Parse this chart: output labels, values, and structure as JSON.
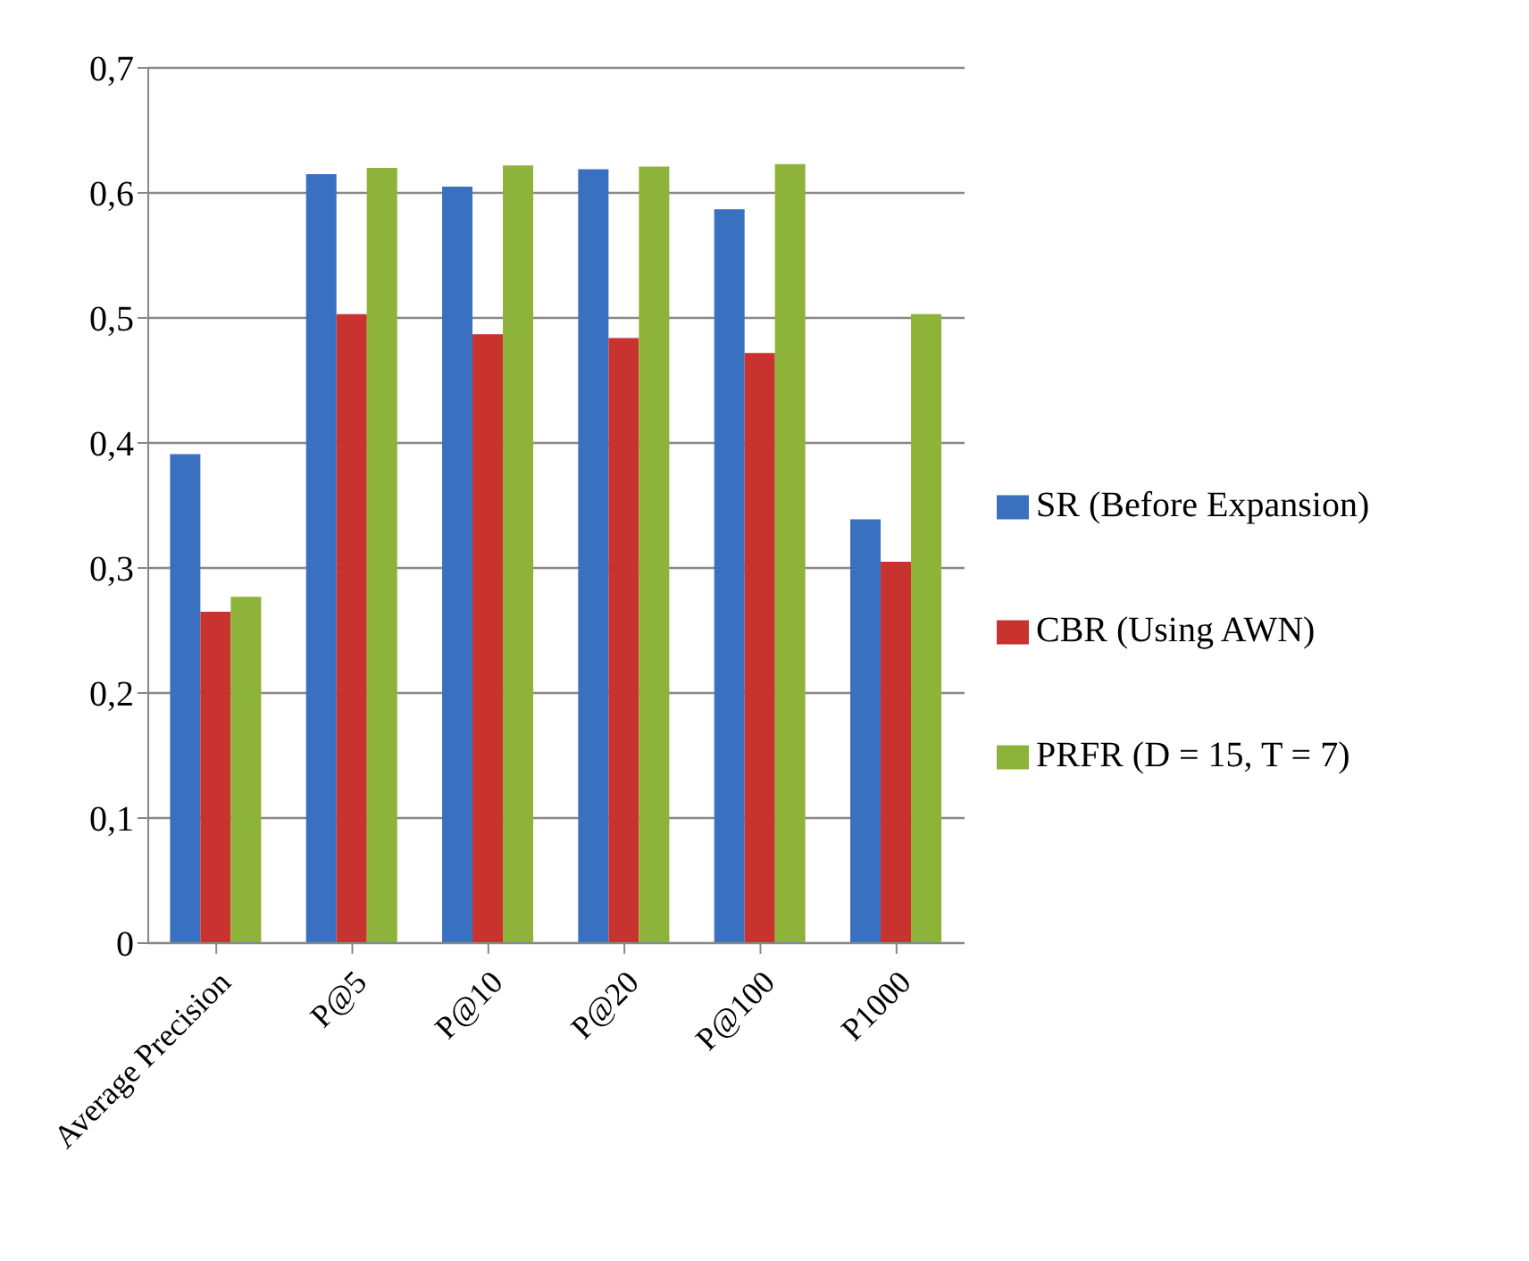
{
  "chart_data": {
    "type": "bar",
    "categories": [
      "Average Precision",
      "P@5",
      "P@10",
      "P@20",
      "P@100",
      "P1000"
    ],
    "series": [
      {
        "name": "SR (Before Expansion)",
        "color": "#3a70c0",
        "values": [
          0.391,
          0.615,
          0.605,
          0.619,
          0.587,
          0.339
        ]
      },
      {
        "name": "CBR (Using AWN)",
        "color": "#c8332f",
        "values": [
          0.265,
          0.503,
          0.487,
          0.484,
          0.472,
          0.305
        ]
      },
      {
        "name": "PRFR (D = 15, T = 7)",
        "color": "#8db33a",
        "values": [
          0.277,
          0.62,
          0.622,
          0.621,
          0.623,
          0.503
        ]
      }
    ],
    "ylim": [
      0,
      0.7
    ],
    "yticks": [
      0,
      {
        "value": 0.1,
        "label": "0,1"
      },
      {
        "value": 0.2,
        "label": "0,2"
      },
      {
        "value": 0.3,
        "label": "0,3"
      },
      {
        "value": 0.4,
        "label": "0,4"
      },
      {
        "value": 0.5,
        "label": "0,5"
      },
      {
        "value": 0.6,
        "label": "0,6"
      },
      {
        "value": 0.7,
        "label": "0,7"
      }
    ],
    "grid": "y",
    "legend": "right"
  }
}
